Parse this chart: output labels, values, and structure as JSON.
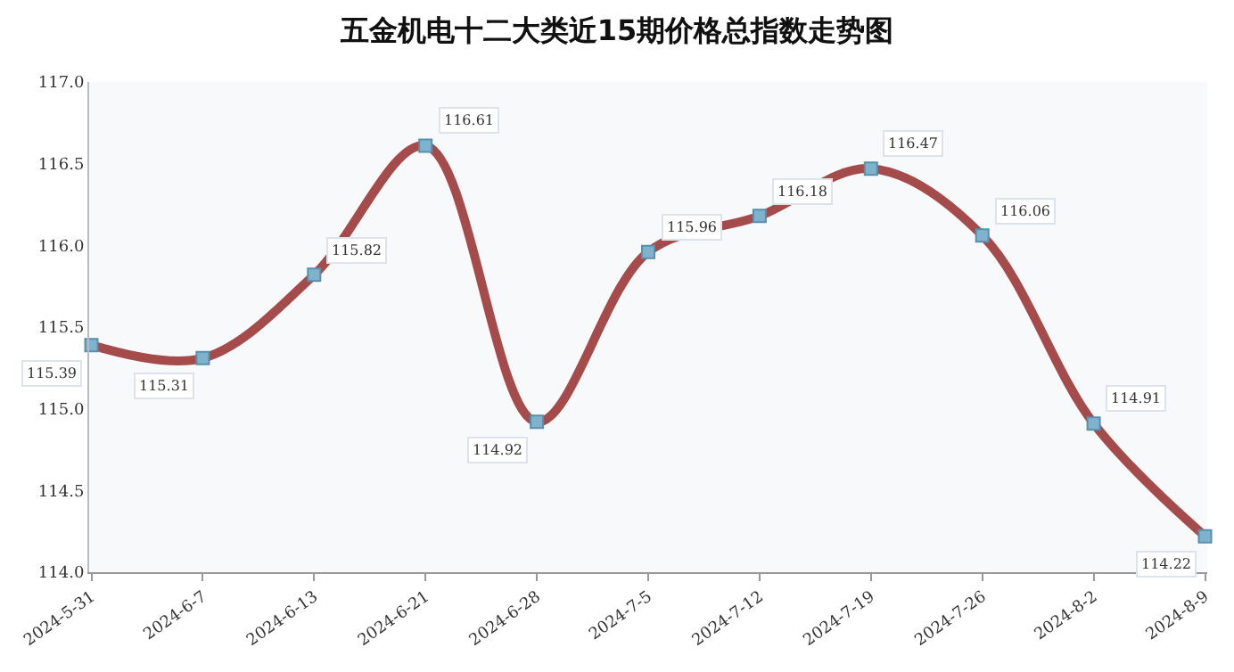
{
  "chart_data": {
    "type": "line",
    "title": "五金机电十二大类近15期价格总指数走势图",
    "categories": [
      "2024-5-31",
      "2024-6-7",
      "2024-6-13",
      "2024-6-21",
      "2024-6-28",
      "2024-7-5",
      "2024-7-12",
      "2024-7-19",
      "2024-7-26",
      "2024-8-2",
      "2024-8-9"
    ],
    "series": [
      {
        "color": "#a64b4b",
        "values": [
          115.39,
          115.31,
          115.82,
          116.61,
          114.92,
          115.96,
          116.18,
          116.47,
          116.06,
          114.91,
          114.22
        ]
      }
    ],
    "ylim": [
      114.0,
      117.0
    ],
    "yticks": [
      {
        "value": 114.0,
        "label": "114.0"
      },
      {
        "value": 114.5,
        "label": "114.5"
      },
      {
        "value": 115.0,
        "label": "115.0"
      },
      {
        "value": 115.5,
        "label": "115.5"
      },
      {
        "value": 116.0,
        "label": "116.0"
      },
      {
        "value": 116.5,
        "label": "116.5"
      },
      {
        "value": 117.0,
        "label": "117.0"
      }
    ],
    "marker": "square",
    "data_labels": true,
    "grid": false
  }
}
